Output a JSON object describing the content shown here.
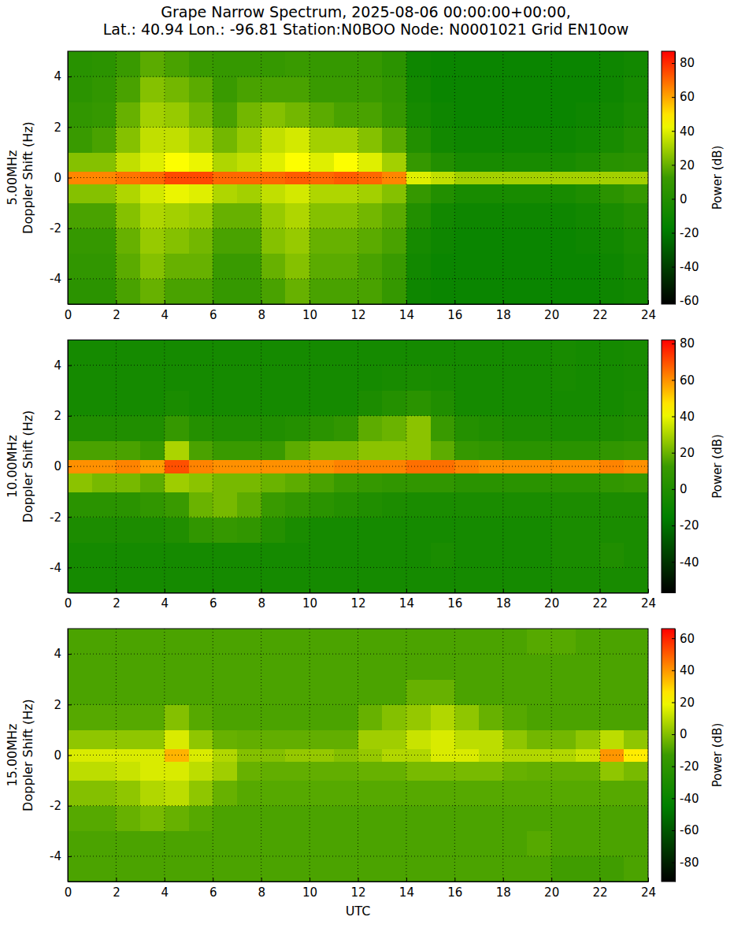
{
  "chart_data": [
    {
      "type": "heatmap",
      "title": [
        "Grape Narrow Spectrum, 2025-08-06 00:00:00+00:00,",
        "Lat.: 40.94 Lon.: -96.81 Station:N0BOO Node: N0001021 Grid EN10ow"
      ],
      "ylabel": [
        "5.00MHz",
        "Doppler Shift (Hz)"
      ],
      "xlim": [
        0,
        24
      ],
      "xticks": [
        0,
        2,
        4,
        6,
        8,
        10,
        12,
        14,
        16,
        18,
        20,
        22,
        24
      ],
      "ylim": [
        -5,
        5
      ],
      "yticks": [
        -4,
        -2,
        0,
        2,
        4
      ],
      "grid": true,
      "x": [
        0,
        1,
        2,
        3,
        4,
        5,
        6,
        7,
        8,
        9,
        10,
        11,
        12,
        13,
        14,
        15,
        16,
        17,
        18,
        19,
        20,
        21,
        22,
        23,
        24
      ],
      "y": [
        -5,
        -4,
        -3,
        -2,
        -1,
        -0.25,
        0.25,
        1,
        2,
        3,
        4,
        5
      ],
      "values": [
        [
          5,
          5,
          15,
          20,
          15,
          15,
          10,
          10,
          15,
          20,
          15,
          15,
          15,
          10,
          -10,
          -12,
          -12,
          -12,
          -12,
          -12,
          -12,
          -12,
          -10,
          -8
        ],
        [
          8,
          8,
          18,
          25,
          20,
          20,
          12,
          12,
          20,
          25,
          18,
          18,
          15,
          12,
          -8,
          -12,
          -12,
          -12,
          -12,
          -12,
          -12,
          -12,
          -10,
          -6
        ],
        [
          10,
          10,
          20,
          28,
          25,
          22,
          15,
          15,
          25,
          28,
          20,
          20,
          18,
          15,
          -6,
          -10,
          -12,
          -12,
          -12,
          -12,
          -12,
          -10,
          -8,
          -4
        ],
        [
          15,
          15,
          25,
          32,
          30,
          28,
          20,
          20,
          28,
          32,
          25,
          25,
          22,
          18,
          0,
          -8,
          -10,
          -10,
          -10,
          -10,
          -10,
          -8,
          -4,
          0
        ],
        [
          25,
          25,
          32,
          38,
          42,
          40,
          32,
          30,
          35,
          38,
          32,
          32,
          30,
          25,
          10,
          0,
          -5,
          -5,
          -5,
          -5,
          -5,
          -2,
          5,
          10
        ],
        [
          65,
          65,
          68,
          70,
          75,
          75,
          70,
          70,
          70,
          72,
          70,
          72,
          70,
          65,
          40,
          35,
          30,
          30,
          30,
          30,
          30,
          30,
          30,
          30
        ],
        [
          25,
          25,
          35,
          40,
          45,
          42,
          32,
          35,
          40,
          45,
          40,
          45,
          40,
          30,
          10,
          0,
          -5,
          -5,
          -5,
          -5,
          -5,
          -2,
          3,
          5
        ],
        [
          12,
          15,
          25,
          35,
          35,
          30,
          22,
          28,
          35,
          38,
          30,
          30,
          25,
          18,
          0,
          -8,
          -10,
          -10,
          -10,
          -10,
          -10,
          -8,
          -5,
          0
        ],
        [
          8,
          10,
          20,
          30,
          28,
          22,
          15,
          22,
          25,
          22,
          18,
          15,
          15,
          10,
          -6,
          -10,
          -12,
          -12,
          -12,
          -12,
          -12,
          -10,
          -8,
          -4
        ],
        [
          5,
          8,
          15,
          25,
          22,
          18,
          12,
          15,
          15,
          15,
          12,
          12,
          12,
          8,
          -8,
          -12,
          -12,
          -12,
          -12,
          -12,
          -12,
          -12,
          -10,
          -6
        ],
        [
          3,
          5,
          12,
          18,
          15,
          12,
          10,
          10,
          10,
          12,
          10,
          10,
          10,
          5,
          -10,
          -12,
          -12,
          -12,
          -12,
          -12,
          -12,
          -12,
          -10,
          -8
        ]
      ],
      "colorbar": {
        "lim": [
          -62,
          87
        ],
        "ticks": [
          -60,
          -40,
          -20,
          0,
          20,
          40,
          60,
          80
        ],
        "label": "Power (dB)"
      }
    },
    {
      "type": "heatmap",
      "ylabel": [
        "10.00MHz",
        "Doppler Shift (Hz)"
      ],
      "xlim": [
        0,
        24
      ],
      "xticks": [
        0,
        2,
        4,
        6,
        8,
        10,
        12,
        14,
        16,
        18,
        20,
        22,
        24
      ],
      "ylim": [
        -5,
        5
      ],
      "yticks": [
        -4,
        -2,
        0,
        2,
        4
      ],
      "grid": true,
      "x": [
        0,
        1,
        2,
        3,
        4,
        5,
        6,
        7,
        8,
        9,
        10,
        11,
        12,
        13,
        14,
        15,
        16,
        17,
        18,
        19,
        20,
        21,
        22,
        23,
        24
      ],
      "y": [
        -5,
        -4,
        -3,
        -2,
        -1,
        -0.25,
        0.25,
        1,
        2,
        3,
        4,
        5
      ],
      "values": [
        [
          -5,
          -5,
          -5,
          -5,
          -5,
          -5,
          -5,
          -5,
          -5,
          -5,
          -5,
          -5,
          -5,
          -5,
          -5,
          -5,
          -5,
          -5,
          -5,
          -5,
          -4,
          -4,
          -4,
          -4
        ],
        [
          -5,
          -5,
          -5,
          -5,
          -5,
          -5,
          -5,
          -5,
          -5,
          -5,
          -5,
          -5,
          -5,
          -5,
          -5,
          -3,
          -5,
          -5,
          -5,
          -5,
          -3,
          -3,
          0,
          -3
        ],
        [
          -2,
          -2,
          -2,
          -2,
          0,
          8,
          10,
          8,
          2,
          -3,
          -5,
          -5,
          -5,
          -5,
          -5,
          -5,
          -5,
          -5,
          -5,
          -5,
          -3,
          -3,
          -3,
          -3
        ],
        [
          5,
          5,
          5,
          8,
          12,
          20,
          22,
          18,
          12,
          8,
          5,
          2,
          0,
          -2,
          -3,
          -3,
          -3,
          -3,
          -3,
          -3,
          -2,
          -2,
          -2,
          -2
        ],
        [
          25,
          22,
          22,
          18,
          28,
          25,
          22,
          22,
          20,
          18,
          15,
          12,
          10,
          8,
          8,
          8,
          5,
          5,
          5,
          5,
          5,
          5,
          8,
          10
        ],
        [
          60,
          60,
          62,
          58,
          70,
          62,
          60,
          60,
          60,
          60,
          60,
          62,
          62,
          62,
          65,
          65,
          62,
          60,
          60,
          60,
          60,
          60,
          62,
          60
        ],
        [
          15,
          15,
          15,
          12,
          30,
          15,
          12,
          12,
          12,
          18,
          22,
          22,
          25,
          25,
          25,
          18,
          10,
          8,
          5,
          5,
          5,
          5,
          8,
          10
        ],
        [
          0,
          0,
          0,
          0,
          10,
          2,
          0,
          0,
          0,
          2,
          5,
          8,
          18,
          20,
          25,
          12,
          2,
          0,
          -2,
          -2,
          -3,
          -3,
          -2,
          0
        ],
        [
          -5,
          -5,
          -5,
          -5,
          -3,
          -5,
          -5,
          -5,
          -5,
          -5,
          -5,
          -5,
          -2,
          2,
          5,
          0,
          -5,
          -5,
          -5,
          -5,
          -5,
          -5,
          -5,
          -3
        ],
        [
          -5,
          -5,
          -5,
          -5,
          -5,
          -5,
          -5,
          -5,
          -5,
          -5,
          -5,
          -5,
          -5,
          -4,
          -3,
          -4,
          -5,
          -5,
          -5,
          -5,
          -4,
          -5,
          -5,
          -4
        ],
        [
          -5,
          -5,
          -5,
          -5,
          -5,
          -5,
          -5,
          -5,
          -5,
          -5,
          -5,
          -5,
          -5,
          -5,
          -5,
          -5,
          -5,
          -5,
          -5,
          -5,
          -4,
          -5,
          -5,
          -4
        ]
      ],
      "colorbar": {
        "lim": [
          -57,
          82
        ],
        "ticks": [
          -40,
          -20,
          0,
          20,
          40,
          60,
          80
        ],
        "label": "Power (dB)"
      }
    },
    {
      "type": "heatmap",
      "ylabel": [
        "15.00MHz",
        "Doppler Shift (Hz)"
      ],
      "xlabel": "UTC",
      "xlim": [
        0,
        24
      ],
      "xticks": [
        0,
        2,
        4,
        6,
        8,
        10,
        12,
        14,
        16,
        18,
        20,
        22,
        24
      ],
      "ylim": [
        -5,
        5
      ],
      "yticks": [
        -4,
        -2,
        0,
        2,
        4
      ],
      "grid": true,
      "x": [
        0,
        1,
        2,
        3,
        4,
        5,
        6,
        7,
        8,
        9,
        10,
        11,
        12,
        13,
        14,
        15,
        16,
        17,
        18,
        19,
        20,
        21,
        22,
        23,
        24
      ],
      "y": [
        -5,
        -4,
        -3,
        -2,
        -1,
        -0.25,
        0.25,
        1,
        2,
        3,
        4,
        5
      ],
      "values": [
        [
          -10,
          -10,
          -10,
          -10,
          -10,
          -10,
          -10,
          -10,
          -10,
          -10,
          -10,
          -10,
          -10,
          -10,
          -10,
          -10,
          -10,
          -10,
          -10,
          -10,
          -12,
          -12,
          -12,
          -10
        ],
        [
          -10,
          -10,
          -10,
          -10,
          -10,
          -10,
          -10,
          -10,
          -10,
          -10,
          -10,
          -10,
          -10,
          -10,
          -10,
          -10,
          -10,
          -10,
          -10,
          -8,
          -10,
          -10,
          -10,
          -10
        ],
        [
          -8,
          -8,
          -5,
          -2,
          -5,
          -8,
          -10,
          -10,
          -10,
          -10,
          -10,
          -10,
          -10,
          -10,
          -10,
          -10,
          -10,
          -10,
          -10,
          -10,
          -10,
          -10,
          -10,
          -10
        ],
        [
          0,
          0,
          2,
          8,
          10,
          2,
          -5,
          -8,
          -8,
          -8,
          -8,
          -8,
          -8,
          -8,
          -8,
          -8,
          -8,
          -8,
          -8,
          -8,
          -8,
          -8,
          -8,
          -8
        ],
        [
          10,
          10,
          12,
          15,
          15,
          10,
          5,
          -5,
          -6,
          -6,
          -6,
          -6,
          -5,
          -5,
          -2,
          -2,
          -2,
          -2,
          -5,
          -6,
          -6,
          -6,
          2,
          -2
        ],
        [
          15,
          15,
          15,
          15,
          35,
          15,
          8,
          0,
          0,
          3,
          3,
          0,
          3,
          8,
          8,
          15,
          15,
          10,
          8,
          8,
          8,
          12,
          40,
          25
        ],
        [
          2,
          2,
          2,
          2,
          15,
          2,
          -5,
          -6,
          -6,
          -6,
          -6,
          -6,
          5,
          5,
          12,
          15,
          10,
          10,
          2,
          -3,
          -3,
          2,
          10,
          2
        ],
        [
          -8,
          -8,
          -8,
          -8,
          0,
          -8,
          -10,
          -10,
          -10,
          -10,
          -10,
          -10,
          -5,
          0,
          3,
          8,
          2,
          -5,
          -8,
          -10,
          -10,
          -10,
          -10,
          -10
        ],
        [
          -10,
          -10,
          -10,
          -10,
          -10,
          -10,
          -10,
          -10,
          -10,
          -10,
          -10,
          -10,
          -10,
          -10,
          -5,
          -5,
          -10,
          -10,
          -10,
          -10,
          -10,
          -10,
          -10,
          -10
        ],
        [
          -10,
          -10,
          -10,
          -10,
          -10,
          -10,
          -10,
          -10,
          -10,
          -10,
          -10,
          -10,
          -10,
          -10,
          -10,
          -10,
          -10,
          -10,
          -10,
          -10,
          -10,
          -10,
          -10,
          -10
        ],
        [
          -10,
          -10,
          -10,
          -10,
          -10,
          -10,
          -10,
          -10,
          -10,
          -10,
          -10,
          -10,
          -10,
          -10,
          -10,
          -10,
          -10,
          -10,
          -10,
          -8,
          -8,
          -10,
          -10,
          -10
        ]
      ],
      "colorbar": {
        "lim": [
          -92,
          66
        ],
        "ticks": [
          -80,
          -60,
          -40,
          -20,
          0,
          20,
          40,
          60
        ],
        "label": "Power (dB)"
      }
    }
  ]
}
